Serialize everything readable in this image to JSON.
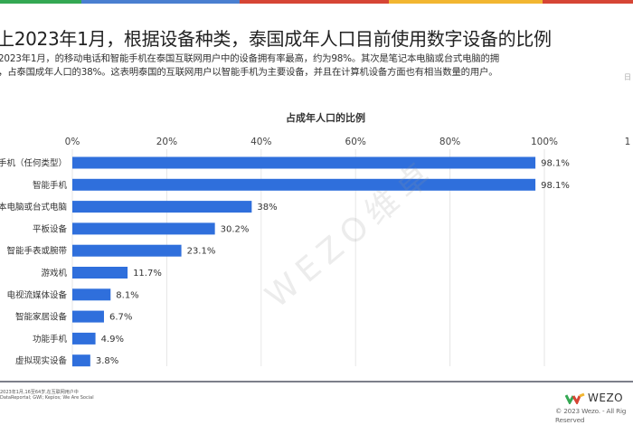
{
  "brand_colors": [
    "#34a853",
    "#4a7fd0",
    "#d64535",
    "#f2b631",
    "#d64535"
  ],
  "title": "上2023年1月，根据设备种类，泰国成年人口目前使用数字设备的比例",
  "subtitle_lines": [
    "2023年1月，的移动电话和智能手机在泰国互联网用户中的设备拥有率最高，约为98%。其次是笔记本电脑或台式电脑的拥",
    "，占泰国成年人口的38%。这表明泰国的互联网用户以智能手机为主要设备，并且在计算机设备方面也有相当数量的用户。"
  ],
  "side_text": "日",
  "watermark": "WEZO维卓",
  "chart_data": {
    "type": "bar",
    "orientation": "horizontal",
    "title": "占成年人口的比例",
    "categories": [
      "手机（任何类型）",
      "智能手机",
      "本电脑或台式电脑",
      "平板设备",
      "智能手表或腕带",
      "游戏机",
      "电视流媒体设备",
      "智能家居设备",
      "功能手机",
      "虚拟现实设备"
    ],
    "values": [
      98.1,
      98.1,
      38,
      30.2,
      23.1,
      11.7,
      8.1,
      6.7,
      4.9,
      3.8
    ],
    "data_labels": [
      "98.1%",
      "98.1%",
      "38%",
      "30.2%",
      "23.1%",
      "11.7%",
      "8.1%",
      "6.7%",
      "4.9%",
      "3.8%"
    ],
    "xlim": [
      0,
      120
    ],
    "x_ticks": [
      "0%",
      "20%",
      "40%",
      "60%",
      "80%",
      "100%",
      "1"
    ],
    "bar_color": "#2f6fdc",
    "grid": true
  },
  "footer": {
    "note_lines": [
      "2023年1月,16至64岁,在互联网用户中",
      "DataReportal; GWI; Kepios; We Are Social"
    ],
    "logo_text": "WEZO",
    "copyright_lines": [
      "© 2023 Wezo. - All Rig",
      "Reserved"
    ]
  }
}
